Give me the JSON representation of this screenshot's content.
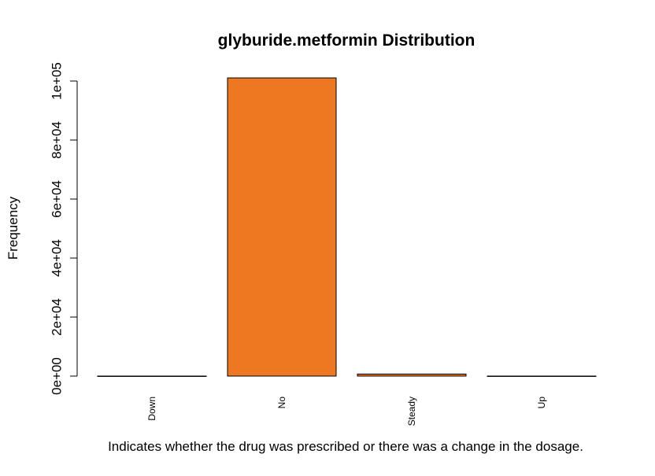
{
  "chart_data": {
    "type": "bar",
    "title": "glyburide.metformin Distribution",
    "xlabel": "Indicates whether the drug was prescribed or there was a change in the dosage.",
    "ylabel": "Frequency",
    "categories": [
      "Down",
      "No",
      "Steady",
      "Up"
    ],
    "values": [
      6,
      101060,
      692,
      8
    ],
    "ylim": [
      0,
      100000
    ],
    "yticks": [
      0,
      20000,
      40000,
      60000,
      80000,
      100000
    ],
    "ytick_labels": [
      "0e+00",
      "2e+04",
      "4e+04",
      "6e+04",
      "8e+04",
      "1e+05"
    ],
    "grid": false,
    "bar_color": "#EE7722",
    "bar_border_color": "#000000"
  }
}
